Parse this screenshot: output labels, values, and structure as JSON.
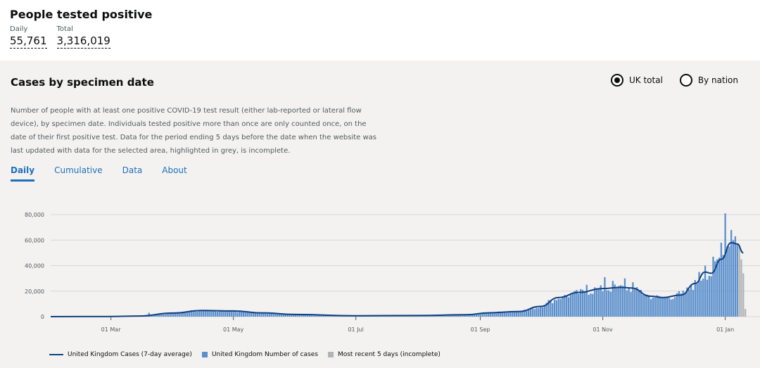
{
  "headline": {
    "title": "People tested positive",
    "daily_label": "Daily",
    "daily_value": "55,761",
    "total_label": "Total",
    "total_value": "3,316,019"
  },
  "card": {
    "title": "Cases by specimen date",
    "radio": [
      {
        "label": "UK total",
        "selected": true
      },
      {
        "label": "By nation",
        "selected": false
      }
    ],
    "description": "Number of people with at least one positive COVID-19 test result (either lab-reported or lateral flow device), by specimen date. Individuals tested positive more than once are only counted once, on the date of their first positive test. Data for the period ending 5 days before the date when the website was last updated with data for the selected area, highlighted in grey, is incomplete.",
    "tabs": [
      "Daily",
      "Cumulative",
      "Data",
      "About"
    ],
    "active_tab": "Daily"
  },
  "colors": {
    "bar": "#5b8fcc",
    "line": "#12407f",
    "incomplete": "#b1b4b6",
    "grid": "#d6d6d6"
  },
  "chart_data": {
    "type": "bar",
    "ylim": [
      0,
      85000
    ],
    "y_ticks": [
      0,
      20000,
      40000,
      60000,
      80000
    ],
    "y_tick_labels": [
      "0",
      "20,000",
      "40,000",
      "60,000",
      "80,000"
    ],
    "x_tick_dates": [
      "2020-03-01",
      "2020-05-01",
      "2020-07-01",
      "2020-09-01",
      "2020-11-01",
      "2021-01-01"
    ],
    "x_tick_labels": [
      "01 Mar",
      "01 May",
      "01 Jul",
      "01 Sep",
      "01 Nov",
      "01 Jan"
    ],
    "x_range": [
      "2020-01-31",
      "2021-01-12"
    ],
    "grid": true,
    "legend_position": "bottom",
    "series": [
      {
        "name": "United Kingdom Cases (7-day average)",
        "kind": "line",
        "points": [
          [
            "2020-01-31",
            0
          ],
          [
            "2020-02-28",
            100
          ],
          [
            "2020-03-15",
            500
          ],
          [
            "2020-04-01",
            2800
          ],
          [
            "2020-04-15",
            4800
          ],
          [
            "2020-05-01",
            4500
          ],
          [
            "2020-05-15",
            3000
          ],
          [
            "2020-06-01",
            1700
          ],
          [
            "2020-07-01",
            700
          ],
          [
            "2020-08-01",
            900
          ],
          [
            "2020-08-25",
            1500
          ],
          [
            "2020-09-05",
            3000
          ],
          [
            "2020-09-20",
            4000
          ],
          [
            "2020-10-01",
            8000
          ],
          [
            "2020-10-10",
            15000
          ],
          [
            "2020-10-20",
            19000
          ],
          [
            "2020-11-01",
            22000
          ],
          [
            "2020-11-10",
            23000
          ],
          [
            "2020-11-15",
            22500
          ],
          [
            "2020-11-25",
            16000
          ],
          [
            "2020-12-01",
            15000
          ],
          [
            "2020-12-10",
            17000
          ],
          [
            "2020-12-17",
            26000
          ],
          [
            "2020-12-22",
            35000
          ],
          [
            "2020-12-25",
            34000
          ],
          [
            "2020-12-30",
            45000
          ],
          [
            "2021-01-04",
            58000
          ],
          [
            "2021-01-07",
            57000
          ],
          [
            "2021-01-10",
            50000
          ]
        ]
      },
      {
        "name": "United Kingdom Number of cases",
        "kind": "bar",
        "points": [
          [
            "2020-03-20",
            3000
          ],
          [
            "2020-04-10",
            5000
          ],
          [
            "2020-04-25",
            5000
          ],
          [
            "2020-05-10",
            3500
          ],
          [
            "2020-09-10",
            4000
          ],
          [
            "2020-09-25",
            6000
          ],
          [
            "2020-10-05",
            13000
          ],
          [
            "2020-10-12",
            16000
          ],
          [
            "2020-10-17",
            18500
          ],
          [
            "2020-10-24",
            25000
          ],
          [
            "2020-10-28",
            23000
          ],
          [
            "2020-11-02",
            31000
          ],
          [
            "2020-11-06",
            28000
          ],
          [
            "2020-11-09",
            24000
          ],
          [
            "2020-11-12",
            30000
          ],
          [
            "2020-11-16",
            27000
          ],
          [
            "2020-11-20",
            21000
          ],
          [
            "2020-11-27",
            15000
          ],
          [
            "2020-12-03",
            15500
          ],
          [
            "2020-12-09",
            20000
          ],
          [
            "2020-12-15",
            25000
          ],
          [
            "2020-12-19",
            35000
          ],
          [
            "2020-12-22",
            40000
          ],
          [
            "2020-12-26",
            47000
          ],
          [
            "2020-12-28",
            45000
          ],
          [
            "2020-12-30",
            58000
          ],
          [
            "2021-01-01",
            81000
          ],
          [
            "2021-01-02",
            55000
          ],
          [
            "2021-01-04",
            68000
          ],
          [
            "2021-01-05",
            60000
          ],
          [
            "2021-01-06",
            63000
          ],
          [
            "2021-01-07",
            57000
          ]
        ]
      },
      {
        "name": "Most recent 5 days (incomplete)",
        "kind": "bar",
        "points": [
          [
            "2021-01-08",
            55000
          ],
          [
            "2021-01-09",
            45000
          ],
          [
            "2021-01-10",
            34000
          ],
          [
            "2021-01-11",
            6000
          ]
        ]
      }
    ]
  }
}
